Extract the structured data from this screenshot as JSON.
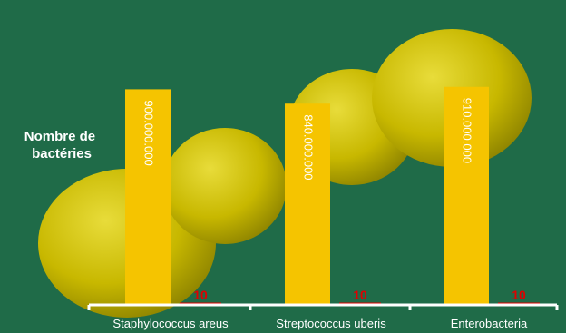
{
  "colors": {
    "background": "#1f6b48",
    "bar_fill": "#f5c400",
    "bar_text": "#ffffff",
    "small_bar": "#e00000",
    "axis": "#ffffff",
    "bacteria": "#d0c000"
  },
  "chart_data": {
    "type": "bar",
    "title": "",
    "xlabel": "",
    "ylabel": "Nombre de bactéries",
    "categories": [
      "Staphylococcus areus",
      "Streptococcus uberis",
      "Enterobacteria"
    ],
    "series": [
      {
        "values": [
          900000000,
          840000000,
          910000000
        ],
        "value_labels": [
          "900.000.000",
          "840.000.000",
          "910.000.000"
        ]
      },
      {
        "values": [
          10,
          10,
          10
        ],
        "value_labels": [
          "10",
          "10",
          "10"
        ]
      }
    ],
    "ylim": [
      0,
      1000000000
    ],
    "grid": false,
    "legend": "none"
  }
}
